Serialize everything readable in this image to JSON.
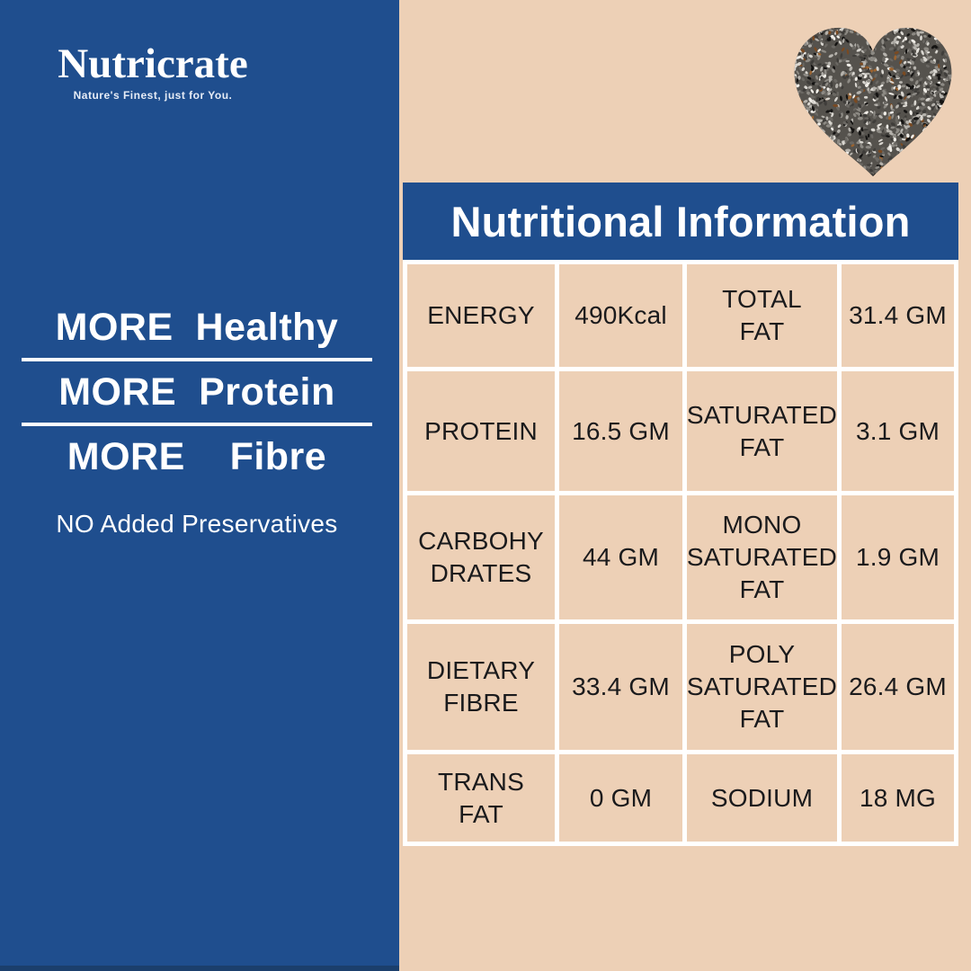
{
  "brand": {
    "name": "Nutricrate",
    "tagline": "Nature's Finest, just for You."
  },
  "left_panel": {
    "headlines": [
      "MORE  Healthy",
      "MORE  Protein",
      "MORE    Fibre"
    ],
    "note": "NO Added Preservatives"
  },
  "header": {
    "title": "Nutritional Information"
  },
  "table": {
    "rows": [
      {
        "cells": [
          "ENERGY",
          "490Kcal",
          "TOTAL\nFAT",
          "31.4 GM"
        ]
      },
      {
        "cells": [
          "PROTEIN",
          "16.5 GM",
          "SATURATED\nFAT",
          "3.1 GM"
        ]
      },
      {
        "cells": [
          "CARBOHY\nDRATES",
          "44 GM",
          "MONO\nSATURATED\nFAT",
          "1.9 GM"
        ]
      },
      {
        "cells": [
          "DIETARY\nFIBRE",
          "33.4 GM",
          "POLY\nSATURATED\nFAT",
          "26.4 GM"
        ]
      },
      {
        "cells": [
          "TRANS\nFAT",
          "0 GM",
          "SODIUM",
          "18 MG"
        ]
      }
    ]
  },
  "decor": {
    "heart_image": "chia-seed-heart"
  },
  "colors": {
    "panel_blue": "#1F4E8E",
    "peach": "#EDD0B6",
    "border_white": "#FFFFFF",
    "text_dark": "#1A1A1C",
    "bottom_strip": "#1B3F6C"
  }
}
